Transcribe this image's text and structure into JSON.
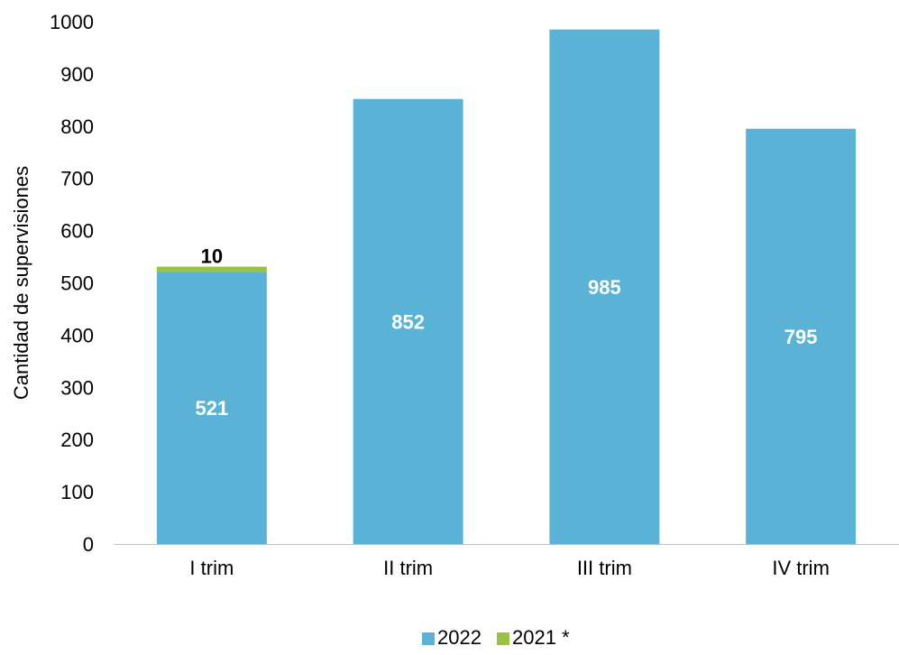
{
  "chart_data": {
    "type": "bar",
    "stacked": true,
    "title": "",
    "xlabel": "",
    "ylabel": "Cantidad de supervisiones",
    "ylim": [
      0,
      1000
    ],
    "yticks": [
      0,
      100,
      200,
      300,
      400,
      500,
      600,
      700,
      800,
      900,
      1000
    ],
    "categories": [
      "I trim",
      "II trim",
      "III trim",
      "IV trim"
    ],
    "series": [
      {
        "name": "2022",
        "values": [
          521,
          852,
          985,
          795
        ],
        "color": "#5ab3d6",
        "label_color": "#ffffff"
      },
      {
        "name": "2021 *",
        "values": [
          10,
          0,
          0,
          0
        ],
        "color": "#9bc144",
        "label_color": "#000000"
      }
    ],
    "grid": false,
    "legend": "bottom"
  }
}
